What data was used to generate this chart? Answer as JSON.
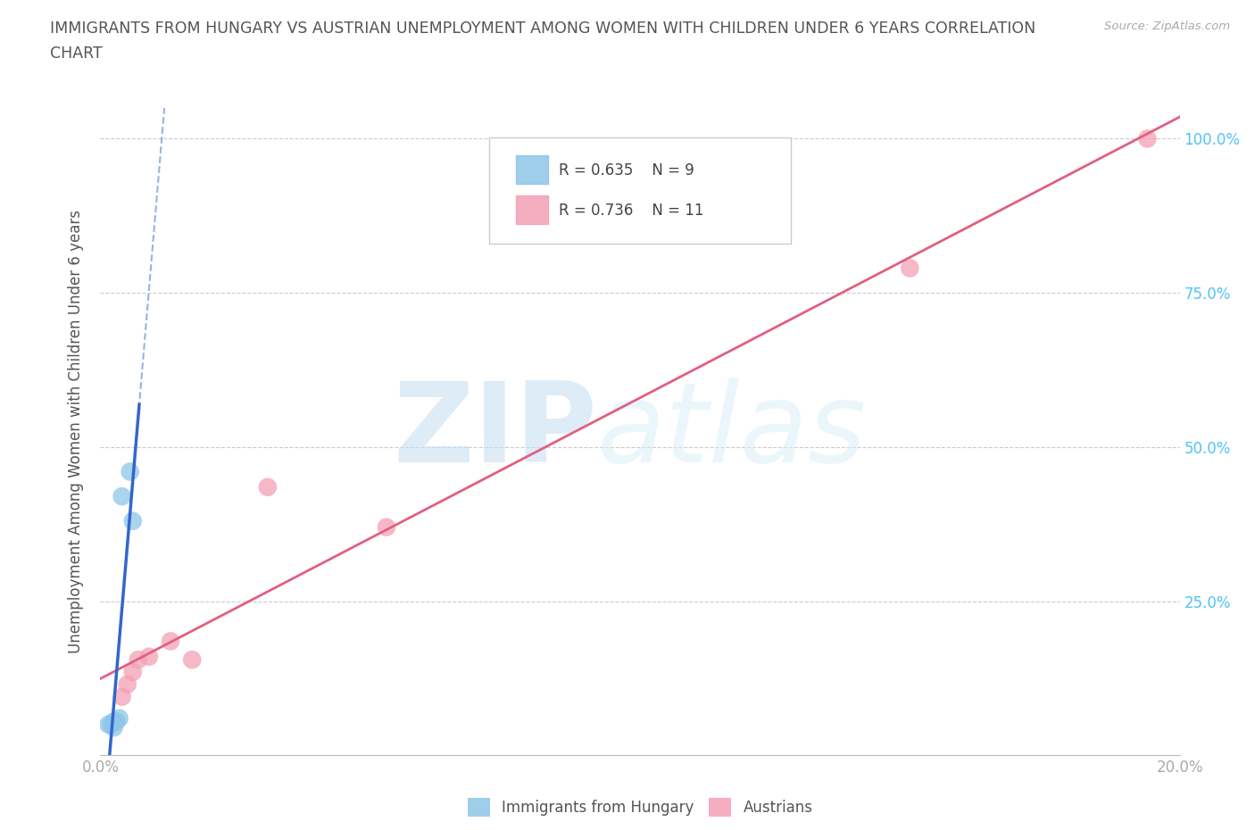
{
  "title_line1": "IMMIGRANTS FROM HUNGARY VS AUSTRIAN UNEMPLOYMENT AMONG WOMEN WITH CHILDREN UNDER 6 YEARS CORRELATION",
  "title_line2": "CHART",
  "source": "Source: ZipAtlas.com",
  "ylabel": "Unemployment Among Women with Children Under 6 years",
  "xlim": [
    0.0,
    0.2
  ],
  "ylim": [
    0.0,
    1.05
  ],
  "x_ticks": [
    0.0,
    0.02,
    0.04,
    0.06,
    0.08,
    0.1,
    0.12,
    0.14,
    0.16,
    0.18,
    0.2
  ],
  "x_tick_labels": [
    "0.0%",
    "",
    "",
    "",
    "",
    "",
    "",
    "",
    "",
    "",
    "20.0%"
  ],
  "y_ticks": [
    0.25,
    0.5,
    0.75,
    1.0
  ],
  "y_tick_labels": [
    "25.0%",
    "50.0%",
    "75.0%",
    "100.0%"
  ],
  "hungary_x": [
    0.0015,
    0.002,
    0.0025,
    0.0025,
    0.003,
    0.0035,
    0.004,
    0.0055,
    0.006
  ],
  "hungary_y": [
    0.05,
    0.05,
    0.045,
    0.055,
    0.055,
    0.06,
    0.42,
    0.46,
    0.38
  ],
  "austrian_x": [
    0.004,
    0.005,
    0.006,
    0.007,
    0.009,
    0.013,
    0.017,
    0.031,
    0.053,
    0.15,
    0.194
  ],
  "austrian_y": [
    0.095,
    0.115,
    0.135,
    0.155,
    0.16,
    0.185,
    0.155,
    0.435,
    0.37,
    0.79,
    1.0
  ],
  "hungary_color": "#8ec6e8",
  "austrian_color": "#f4a0b5",
  "hungary_line_color": "#3366cc",
  "austrian_line_color": "#e06080",
  "hungary_R": 0.635,
  "hungary_N": 9,
  "austrian_R": 0.736,
  "austrian_N": 11,
  "watermark_zip": "ZIP",
  "watermark_atlas": "atlas",
  "watermark_color": "#c8e0f4",
  "background_color": "#ffffff",
  "grid_color": "#cccccc",
  "title_color": "#555555",
  "axis_label_color": "#555555",
  "tick_color": "#aaaaaa",
  "ytick_color": "#4fc3f7",
  "legend_label_hungary": "Immigrants from Hungary",
  "legend_label_austrian": "Austrians"
}
